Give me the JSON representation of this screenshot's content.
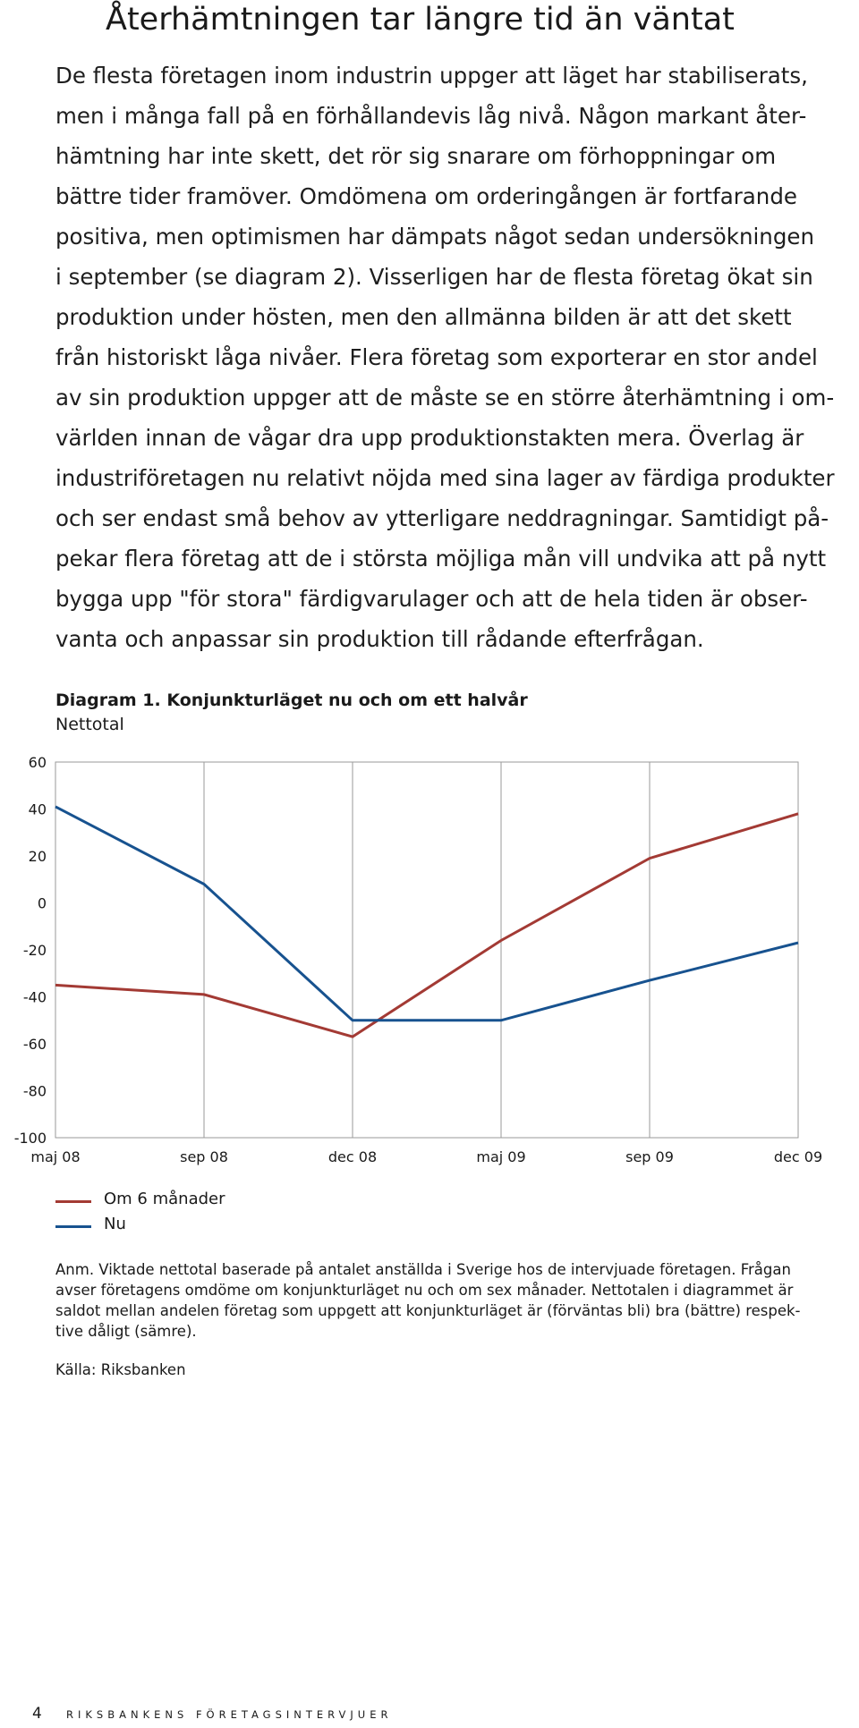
{
  "heading": "Återhämtningen tar längre tid än väntat",
  "body_lines": [
    "De flesta företagen inom industrin uppger att läget har stabiliserats,",
    "men i många fall på en förhållandevis låg nivå. Någon markant åter-",
    "hämtning har inte skett, det rör sig snarare om förhoppningar om",
    "bättre tider framöver. Omdömena om orderingången är fortfarande",
    "positiva, men optimismen har dämpats något sedan undersökningen",
    "i september (se diagram 2). Visserligen har de flesta företag ökat sin",
    "produktion under hösten, men den allmänna bilden är att det skett",
    "från historiskt låga nivåer. Flera företag som exporterar en stor andel",
    "av sin produktion uppger att de måste se en större återhämtning i om-",
    "världen innan de vågar dra upp produktionstakten mera. Överlag är",
    "industriföretagen nu relativt nöjda med sina lager av färdiga produkter",
    "och ser endast små behov av ytterligare neddragningar. Samtidigt på-",
    "pekar flera företag att de i största möjliga mån vill undvika att på nytt",
    "bygga upp \"för stora\" färdigvarulager och att de hela tiden är obser-",
    "vanta och anpassar sin produktion till rådande efterfrågan."
  ],
  "diagram_title": "Diagram 1. Konjunkturläget nu och om ett halvår",
  "diagram_subtitle": "Nettotal",
  "chart_data": {
    "type": "line",
    "title": "Diagram 1. Konjunkturläget nu och om ett halvår",
    "ylabel": "Nettotal",
    "xlabel": "",
    "categories": [
      "maj 08",
      "sep 08",
      "dec 08",
      "maj 09",
      "sep 09",
      "dec 09"
    ],
    "ylim": [
      -100,
      60
    ],
    "yticks": [
      60,
      40,
      20,
      0,
      -20,
      -40,
      -60,
      -80,
      -100
    ],
    "ytick_labels": [
      "60",
      "40",
      "20",
      "0",
      "-20",
      "-40",
      "-60",
      "-80",
      "-100"
    ],
    "grid": "vertical",
    "legend_position": "bottom-left",
    "series": [
      {
        "name": "Om 6 månader",
        "color": "#a33a34",
        "values": [
          -35,
          -39,
          -57,
          -16,
          19,
          38
        ]
      },
      {
        "name": "Nu",
        "color": "#17528f",
        "values": [
          41,
          8,
          -50,
          -50,
          -33,
          -17
        ]
      }
    ]
  },
  "note_lines": [
    "Anm. Viktade nettotal baserade på antalet anställda i Sverige hos de intervjuade företagen. Frågan",
    "avser företagens omdöme om konjunkturläget nu och om sex månader. Nettotalen i diagrammet är",
    "saldot mellan andelen företag som uppgett att konjunkturläget är (förväntas bli) bra (bättre) respek-",
    "tive dåligt (sämre)."
  ],
  "source": "Källa: Riksbanken",
  "footer": {
    "page_number": "4",
    "running_head": "RIKSBANKENS FÖRETAGSINTERVJUER"
  }
}
